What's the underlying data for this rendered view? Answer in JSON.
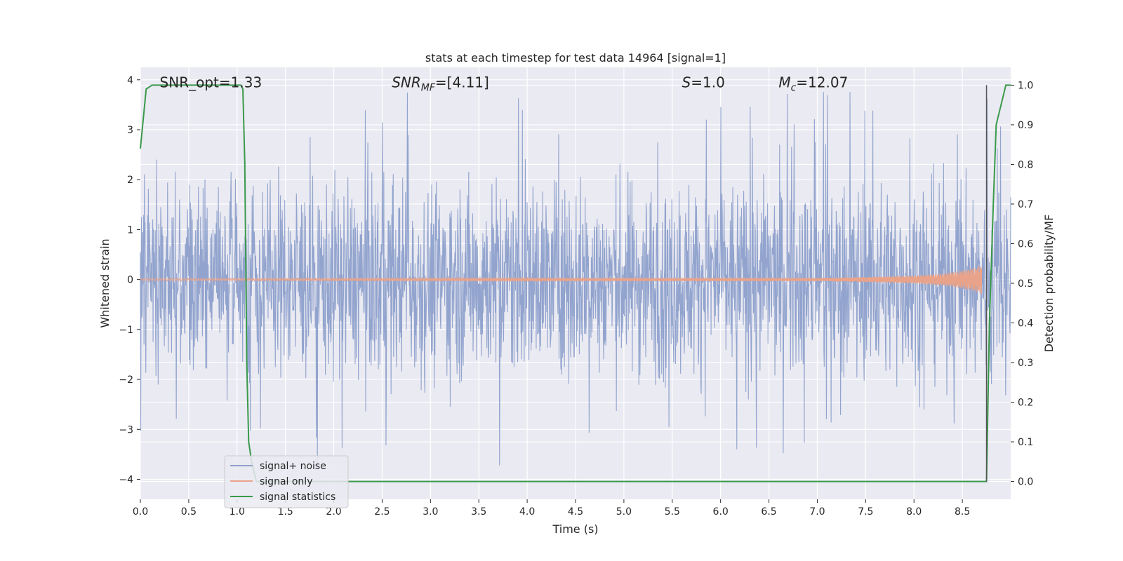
{
  "chart_data": {
    "type": "line",
    "title": "stats at each timestep for test data 14964 [signal=1]",
    "xlabel": "Time (s)",
    "ylabel": "Whitened strain",
    "y2label": "Detection probability/MF",
    "xlim": [
      0.0,
      9.0
    ],
    "ylim": [
      -4.4,
      4.25
    ],
    "y2lim": [
      -0.045,
      1.045
    ],
    "xticks": [
      0.0,
      0.5,
      1.0,
      1.5,
      2.0,
      2.5,
      3.0,
      3.5,
      4.0,
      4.5,
      5.0,
      5.5,
      6.0,
      6.5,
      7.0,
      7.5,
      8.0,
      8.5
    ],
    "xtick_labels": [
      "0.0",
      "0.5",
      "1.0",
      "1.5",
      "2.0",
      "2.5",
      "3.0",
      "3.5",
      "4.0",
      "4.5",
      "5.0",
      "5.5",
      "6.0",
      "6.5",
      "7.0",
      "7.5",
      "8.0",
      "8.5"
    ],
    "yticks": [
      -4,
      -3,
      -2,
      -1,
      0,
      1,
      2,
      3,
      4
    ],
    "ytick_labels": [
      "−4",
      "−3",
      "−2",
      "−1",
      "0",
      "1",
      "2",
      "3",
      "4"
    ],
    "y2ticks": [
      0.0,
      0.1,
      0.2,
      0.3,
      0.4,
      0.5,
      0.6,
      0.7,
      0.8,
      0.9,
      1.0
    ],
    "y2tick_labels": [
      "0.0",
      "0.1",
      "0.2",
      "0.3",
      "0.4",
      "0.5",
      "0.6",
      "0.7",
      "0.8",
      "0.9",
      "1.0"
    ],
    "grid": true,
    "annotations": [
      {
        "text": "SNR_opt=1.33",
        "x": 0.2
      },
      {
        "text": "SNR_MF=[4.11]",
        "x": 2.6,
        "display_main": "SNR",
        "display_sub": "MF",
        "display_rest": "=[4.11]"
      },
      {
        "text": "S=1.0",
        "x": 5.6,
        "display_main": "S",
        "display_rest": "=1.0"
      },
      {
        "text": "M_c=12.07",
        "x": 6.6,
        "display_main": "M",
        "display_sub": "c",
        "display_rest": "=12.07"
      }
    ],
    "marker_line": {
      "x": 8.75,
      "y2_range": [
        0.0,
        1.0
      ],
      "color": "#555555"
    },
    "legend": {
      "placement": "lower-left",
      "entries": [
        {
          "label": "signal+ noise",
          "color": "#8da0cb"
        },
        {
          "label": "signal only",
          "color": "#e9a38a"
        },
        {
          "label": "signal statistics",
          "color": "#3a9a4b"
        }
      ]
    },
    "series": [
      {
        "name": "signal+ noise",
        "axis": "left",
        "color": "#8da0cb",
        "description_values": {
          "typical_min": -2.0,
          "typical_max": 2.3,
          "peak_max": 3.9,
          "peak_min": -4.0
        }
      },
      {
        "name": "signal only",
        "axis": "left",
        "color": "#e9a38a",
        "envelope": {
          "x": [
            0.0,
            7.0,
            7.5,
            8.0,
            8.3,
            8.5,
            8.65,
            8.7
          ],
          "amp": [
            0.02,
            0.03,
            0.05,
            0.08,
            0.12,
            0.18,
            0.25,
            0.3
          ]
        }
      },
      {
        "name": "signal statistics",
        "axis": "right",
        "color": "#3a9a4b",
        "x": [
          0.0,
          0.06,
          0.12,
          0.5,
          1.0,
          1.04,
          1.06,
          1.08,
          1.1,
          1.12,
          1.15,
          1.2,
          1.5,
          3.0,
          6.0,
          8.75,
          8.78,
          8.82,
          8.85,
          8.9,
          8.95,
          9.0
        ],
        "y": [
          0.84,
          0.99,
          1.0,
          1.0,
          1.0,
          1.0,
          0.99,
          0.8,
          0.3,
          0.1,
          0.05,
          0.0,
          0.0,
          0.0,
          0.0,
          0.0,
          0.4,
          0.7,
          0.9,
          0.95,
          1.0,
          1.0
        ]
      }
    ]
  }
}
